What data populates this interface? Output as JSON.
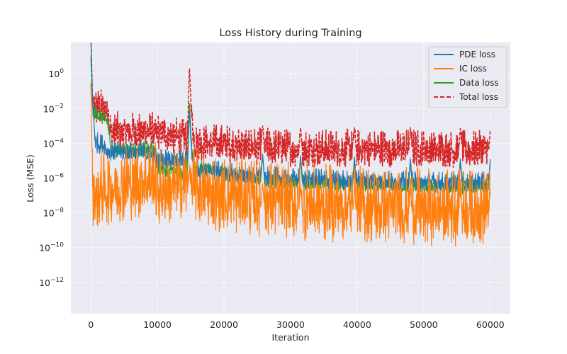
{
  "chart_data": {
    "type": "line",
    "title": "Loss History during Training",
    "xlabel": "Iteration",
    "ylabel": "Loss (MSE)",
    "xlim": [
      -3000,
      63000
    ],
    "ylim_log10": [
      -13.8,
      1.8
    ],
    "y_scale": "log",
    "grid": true,
    "legend_position": "top-right",
    "xticks": [
      0,
      10000,
      20000,
      30000,
      40000,
      50000,
      60000
    ],
    "xtick_labels": [
      "0",
      "10000",
      "20000",
      "30000",
      "40000",
      "50000",
      "60000"
    ],
    "yticks_log10": [
      0,
      -2,
      -4,
      -6,
      -8,
      -10,
      -12
    ],
    "ytick_base": "10",
    "ytick_exponents": [
      "0",
      "−2",
      "−4",
      "−6",
      "−8",
      "−10",
      "−12"
    ],
    "spike_iterations": [
      0,
      14800,
      25800,
      31500,
      39600,
      48000,
      55500,
      60000
    ],
    "series": [
      {
        "name": "PDE loss",
        "color": "#1f77b4",
        "dashed": false,
        "trend_log10": [
          [
            0,
            0.5
          ],
          [
            300,
            -2.2
          ],
          [
            700,
            -4.1
          ],
          [
            2000,
            -4.3
          ],
          [
            2600,
            -4.6
          ],
          [
            8000,
            -4.7
          ],
          [
            10000,
            -5.0
          ],
          [
            14500,
            -5.2
          ],
          [
            14800,
            -3.6
          ],
          [
            15500,
            -5.6
          ],
          [
            25000,
            -6.1
          ],
          [
            31000,
            -6.2
          ],
          [
            40000,
            -6.3
          ],
          [
            50000,
            -6.4
          ],
          [
            60000,
            -6.4
          ]
        ],
        "band_log10": 1.2
      },
      {
        "name": "IC loss",
        "color": "#ff7f0e",
        "dashed": false,
        "trend_log10": [
          [
            0,
            -2.0
          ],
          [
            300,
            -7.5
          ],
          [
            2000,
            -7.2
          ],
          [
            9500,
            -6.6
          ],
          [
            10000,
            -7.2
          ],
          [
            14800,
            -7.0
          ],
          [
            20000,
            -7.6
          ],
          [
            30000,
            -8.0
          ],
          [
            40000,
            -8.2
          ],
          [
            50000,
            -8.3
          ],
          [
            60000,
            -8.4
          ]
        ],
        "band_log10": 4.5
      },
      {
        "name": "Data loss",
        "color": "#2ca02c",
        "dashed": false,
        "trend_log10": [
          [
            0,
            -0.5
          ],
          [
            300,
            -2.3
          ],
          [
            2500,
            -2.8
          ],
          [
            3000,
            -4.5
          ],
          [
            9500,
            -4.5
          ],
          [
            10000,
            -5.5
          ],
          [
            14500,
            -5.9
          ],
          [
            14800,
            -3.0
          ],
          [
            15500,
            -5.5
          ],
          [
            25000,
            -6.2
          ],
          [
            31000,
            -6.4
          ],
          [
            40000,
            -6.5
          ],
          [
            50000,
            -6.6
          ],
          [
            60000,
            -6.6
          ]
        ],
        "band_log10": 0.9
      },
      {
        "name": "Total loss",
        "color": "#d62728",
        "dashed": true,
        "trend_log10": [
          [
            0,
            0.8
          ],
          [
            300,
            -2.2
          ],
          [
            2500,
            -2.4
          ],
          [
            3000,
            -3.6
          ],
          [
            10000,
            -3.6
          ],
          [
            14500,
            -4.1
          ],
          [
            14800,
            -1.0
          ],
          [
            15500,
            -4.2
          ],
          [
            25000,
            -4.5
          ],
          [
            31000,
            -4.6
          ],
          [
            40000,
            -4.6
          ],
          [
            50000,
            -4.6
          ],
          [
            60000,
            -4.7
          ]
        ],
        "band_log10": 2.2
      }
    ]
  }
}
